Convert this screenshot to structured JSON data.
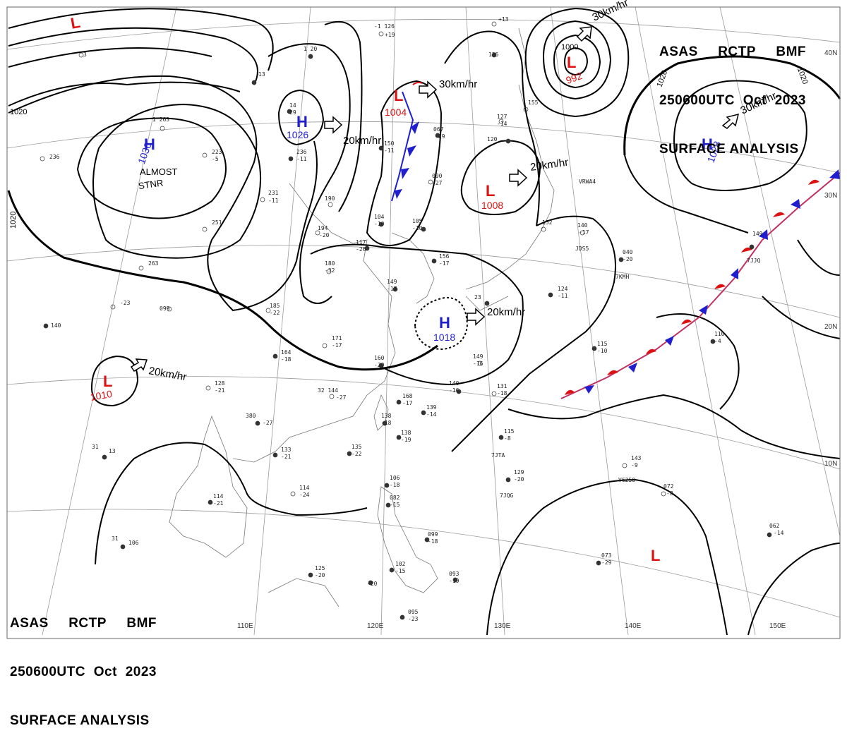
{
  "header": {
    "line1": [
      "ASAS",
      "RCTP",
      "BMF"
    ],
    "line2": [
      "250600UTC",
      "Oct",
      "2023"
    ],
    "line3": "SURFACE ANALYSIS"
  },
  "systems": [
    {
      "type": "H",
      "pressure": "1030",
      "color": "#1f1fd0"
    },
    {
      "type": "H",
      "pressure": "1026",
      "color": "#1f1fd0"
    },
    {
      "type": "H",
      "pressure": "1028",
      "color": "#1f1fd0"
    },
    {
      "type": "H",
      "pressure": "1018",
      "color": "#1f1fd0"
    },
    {
      "type": "L",
      "pressure": "1004",
      "color": "#dd1111"
    },
    {
      "type": "L",
      "pressure": "992",
      "color": "#dd1111"
    },
    {
      "type": "L",
      "pressure": "1008",
      "color": "#dd1111"
    },
    {
      "type": "L",
      "pressure": "1010",
      "color": "#dd1111"
    },
    {
      "type": "L",
      "pressure": "",
      "color": "#dd1111"
    },
    {
      "type": "L",
      "pressure": "",
      "color": "#dd1111"
    }
  ],
  "motion_labels": [
    "30km/hr",
    "20km/hr",
    "30km/hr",
    "20km/hr",
    "30km/hr",
    "20km/hr",
    "20km/hr"
  ],
  "annotation": [
    "ALMOST",
    "STNR"
  ],
  "isobar_labels": [
    "1020",
    "1020",
    "1000",
    "1020",
    "1020"
  ],
  "grid": {
    "longitudes": [
      "110E",
      "120E",
      "130E",
      "140E",
      "150E"
    ],
    "latitudes": [
      "40N",
      "30N",
      "20N",
      "10N"
    ]
  },
  "stations": [
    {
      "id": "JDS5"
    },
    {
      "id": "7KMH"
    },
    {
      "id": "7JTA"
    },
    {
      "id": "7JQG"
    },
    {
      "id": "VRWA4"
    },
    {
      "id": "V6250"
    },
    {
      "id": "7JJQ"
    }
  ],
  "colors": {
    "high": "#1f1fd0",
    "low": "#dd1111",
    "front_cold": "#1f1fd0",
    "front_warm": "#dd1111",
    "isobar": "#000000",
    "grid": "#888888"
  }
}
